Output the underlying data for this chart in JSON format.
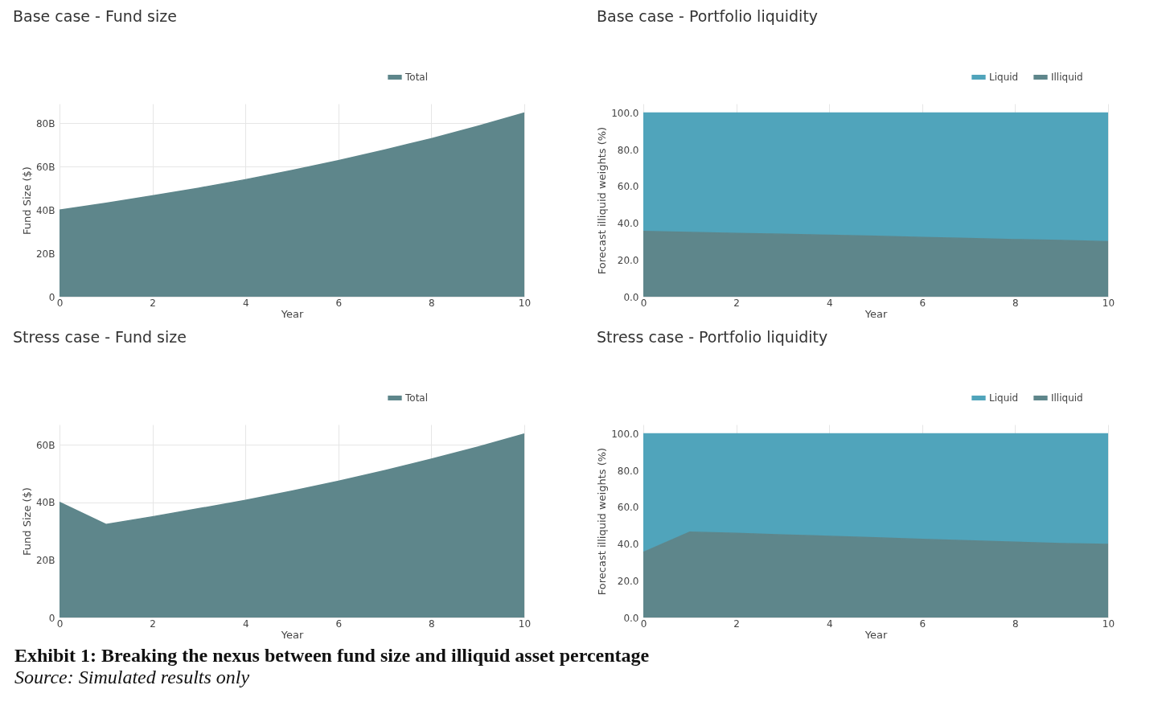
{
  "chart_data": [
    {
      "type": "area",
      "title": "Base case - Fund size",
      "xlabel": "Year",
      "ylabel": "Fund Size ($)",
      "x": [
        0,
        1,
        2,
        3,
        4,
        5,
        6,
        7,
        8,
        9,
        10
      ],
      "xlim": [
        0,
        10
      ],
      "xticks": [
        0,
        2,
        4,
        6,
        8,
        10
      ],
      "ylim": [
        0,
        89
      ],
      "yticks": [
        0,
        {
          "value": 20,
          "label": "20B"
        },
        {
          "value": 40,
          "label": "40B"
        },
        {
          "value": 60,
          "label": "60B"
        },
        {
          "value": 80,
          "label": "80B"
        }
      ],
      "grid": true,
      "legend": "top right",
      "series": [
        {
          "name": "Total",
          "color": "#5e868b",
          "values": [
            40,
            43.1,
            46.5,
            50.1,
            54.0,
            58.2,
            62.8,
            67.7,
            72.9,
            78.6,
            84.7
          ]
        }
      ]
    },
    {
      "type": "area",
      "stacked": true,
      "title": "Base case - Portfolio liquidity",
      "xlabel": "Year",
      "ylabel": "Forecast illiquid weights (%)",
      "x": [
        0,
        1,
        2,
        3,
        4,
        5,
        6,
        7,
        8,
        9,
        10
      ],
      "xlim": [
        0,
        10
      ],
      "xticks": [
        0,
        2,
        4,
        6,
        8,
        10
      ],
      "ylim": [
        0,
        105
      ],
      "yticks": [
        {
          "value": 0,
          "label": "0.0"
        },
        {
          "value": 20,
          "label": "20.0"
        },
        {
          "value": 40,
          "label": "40.0"
        },
        {
          "value": 60,
          "label": "60.0"
        },
        {
          "value": 80,
          "label": "80.0"
        },
        {
          "value": 100,
          "label": "100.0"
        }
      ],
      "grid": true,
      "legend": "top right",
      "series": [
        {
          "name": "Illiquid",
          "color": "#5e868b",
          "values": [
            35.5,
            35.0,
            34.5,
            34.0,
            33.5,
            32.9,
            32.3,
            31.7,
            31.1,
            30.6,
            30.0
          ]
        },
        {
          "name": "Liquid",
          "color": "#50a4bb",
          "values": [
            64.5,
            65.0,
            65.5,
            66.0,
            66.5,
            67.1,
            67.7,
            68.3,
            68.9,
            69.4,
            70.0
          ]
        }
      ]
    },
    {
      "type": "area",
      "title": "Stress case - Fund size",
      "xlabel": "Year",
      "ylabel": "Fund Size ($)",
      "x": [
        0,
        1,
        2,
        3,
        4,
        5,
        6,
        7,
        8,
        9,
        10
      ],
      "xlim": [
        0,
        10
      ],
      "xticks": [
        0,
        2,
        4,
        6,
        8,
        10
      ],
      "ylim": [
        0,
        67
      ],
      "yticks": [
        0,
        {
          "value": 20,
          "label": "20B"
        },
        {
          "value": 40,
          "label": "40B"
        },
        {
          "value": 60,
          "label": "60B"
        }
      ],
      "grid": true,
      "legend": "top right",
      "series": [
        {
          "name": "Total",
          "color": "#5e868b",
          "values": [
            40,
            32.3,
            35.0,
            37.8,
            40.7,
            43.9,
            47.3,
            51.0,
            55.0,
            59.2,
            63.7
          ]
        }
      ]
    },
    {
      "type": "area",
      "stacked": true,
      "title": "Stress case - Portfolio liquidity",
      "xlabel": "Year",
      "ylabel": "Forecast illiquid weights (%)",
      "x": [
        0,
        1,
        2,
        3,
        4,
        5,
        6,
        7,
        8,
        9,
        10
      ],
      "xlim": [
        0,
        10
      ],
      "xticks": [
        0,
        2,
        4,
        6,
        8,
        10
      ],
      "ylim": [
        0,
        105
      ],
      "yticks": [
        {
          "value": 0,
          "label": "0.0"
        },
        {
          "value": 20,
          "label": "20.0"
        },
        {
          "value": 40,
          "label": "40.0"
        },
        {
          "value": 60,
          "label": "60.0"
        },
        {
          "value": 80,
          "label": "80.0"
        },
        {
          "value": 100,
          "label": "100.0"
        }
      ],
      "grid": true,
      "legend": "top right",
      "annotations": [
        "Exhibit 1: Breaking the nexus between fund size and illiquid asset percentage",
        "Source: Simulated results only"
      ],
      "series": [
        {
          "name": "Illiquid",
          "color": "#5e868b",
          "values": [
            35.5,
            46.5,
            45.8,
            45.0,
            44.2,
            43.4,
            42.6,
            41.8,
            41.0,
            40.3,
            39.8
          ]
        },
        {
          "name": "Liquid",
          "color": "#50a4bb",
          "values": [
            64.5,
            53.5,
            54.2,
            55.0,
            55.8,
            56.6,
            57.4,
            58.2,
            59.0,
            59.7,
            60.2
          ]
        }
      ]
    }
  ]
}
